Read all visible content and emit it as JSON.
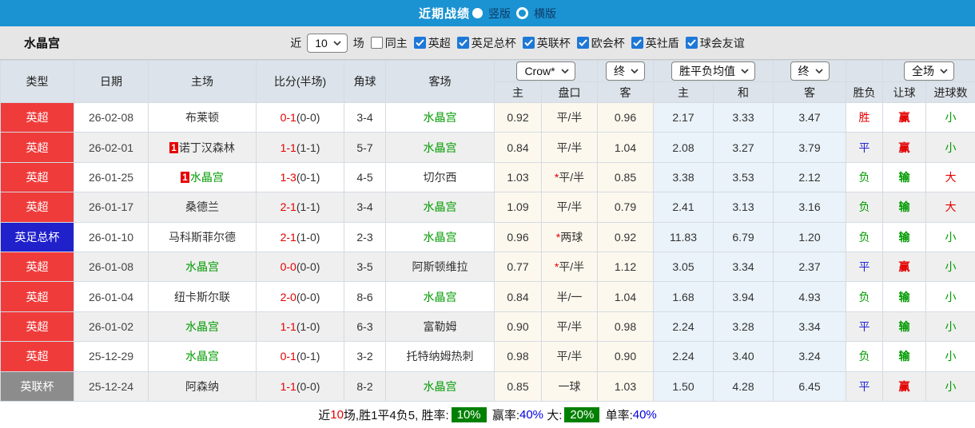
{
  "topbar": {
    "title": "近期战绩",
    "vertical_label": "竖版",
    "horizontal_label": "横版",
    "selected": "竖版"
  },
  "filter": {
    "team": "水晶宫",
    "near_label": "近",
    "count": "10",
    "games_label": "场",
    "same_home": {
      "label": "同主",
      "checked": false
    },
    "leagues": [
      {
        "label": "英超",
        "checked": true
      },
      {
        "label": "英足总杯",
        "checked": true
      },
      {
        "label": "英联杯",
        "checked": true
      },
      {
        "label": "欧会杯",
        "checked": true
      },
      {
        "label": "英社盾",
        "checked": true
      },
      {
        "label": "球会友谊",
        "checked": true
      }
    ]
  },
  "table": {
    "headers_left": [
      "类型",
      "日期",
      "主场",
      "比分(半场)",
      "角球",
      "客场"
    ],
    "selects": {
      "bookmaker": "Crow*",
      "bookmaker_final": "终",
      "average": "胜平负均值",
      "average_final": "终",
      "scope": "全场"
    },
    "subheaders": [
      "主",
      "盘口",
      "客",
      "主",
      "和",
      "客",
      "胜负",
      "让球",
      "进球数"
    ],
    "rows": [
      {
        "league": "英超",
        "league_style": "red",
        "date": "26-02-08",
        "home": {
          "name": "布莱顿",
          "green": false,
          "badge": ""
        },
        "score": "0-1",
        "half": "(0-0)",
        "corners": "3-4",
        "away": {
          "name": "水晶宫",
          "green": true,
          "badge": ""
        },
        "odds_home": "0.92",
        "line": "平/半",
        "line_star": false,
        "odds_away": "0.96",
        "avg_home": "2.17",
        "avg_draw": "3.33",
        "avg_away": "3.47",
        "result": [
          "胜",
          "red"
        ],
        "handicap_res": [
          "赢",
          "red"
        ],
        "goals_res": [
          "小",
          "green"
        ]
      },
      {
        "league": "英超",
        "league_style": "red",
        "date": "26-02-01",
        "home": {
          "name": "诺丁汉森林",
          "green": false,
          "badge": "1"
        },
        "score": "1-1",
        "half": "(1-1)",
        "corners": "5-7",
        "away": {
          "name": "水晶宫",
          "green": true,
          "badge": ""
        },
        "odds_home": "0.84",
        "line": "平/半",
        "line_star": false,
        "odds_away": "1.04",
        "avg_home": "2.08",
        "avg_draw": "3.27",
        "avg_away": "3.79",
        "result": [
          "平",
          "blue"
        ],
        "handicap_res": [
          "赢",
          "red"
        ],
        "goals_res": [
          "小",
          "green"
        ]
      },
      {
        "league": "英超",
        "league_style": "red",
        "date": "26-01-25",
        "home": {
          "name": "水晶宫",
          "green": true,
          "badge": "1"
        },
        "score": "1-3",
        "half": "(0-1)",
        "corners": "4-5",
        "away": {
          "name": "切尔西",
          "green": false,
          "badge": ""
        },
        "odds_home": "1.03",
        "line": "平/半",
        "line_star": true,
        "odds_away": "0.85",
        "avg_home": "3.38",
        "avg_draw": "3.53",
        "avg_away": "2.12",
        "result": [
          "负",
          "green"
        ],
        "handicap_res": [
          "输",
          "green"
        ],
        "goals_res": [
          "大",
          "red"
        ]
      },
      {
        "league": "英超",
        "league_style": "red",
        "date": "26-01-17",
        "home": {
          "name": "桑德兰",
          "green": false,
          "badge": ""
        },
        "score": "2-1",
        "half": "(1-1)",
        "corners": "3-4",
        "away": {
          "name": "水晶宫",
          "green": true,
          "badge": ""
        },
        "odds_home": "1.09",
        "line": "平/半",
        "line_star": false,
        "odds_away": "0.79",
        "avg_home": "2.41",
        "avg_draw": "3.13",
        "avg_away": "3.16",
        "result": [
          "负",
          "green"
        ],
        "handicap_res": [
          "输",
          "green"
        ],
        "goals_res": [
          "大",
          "red"
        ]
      },
      {
        "league": "英足总杯",
        "league_style": "blue",
        "date": "26-01-10",
        "home": {
          "name": "马科斯菲尔德",
          "green": false,
          "badge": ""
        },
        "score": "2-1",
        "half": "(1-0)",
        "corners": "2-3",
        "away": {
          "name": "水晶宫",
          "green": true,
          "badge": ""
        },
        "odds_home": "0.96",
        "line": "两球",
        "line_star": true,
        "odds_away": "0.92",
        "avg_home": "11.83",
        "avg_draw": "6.79",
        "avg_away": "1.20",
        "result": [
          "负",
          "green"
        ],
        "handicap_res": [
          "输",
          "green"
        ],
        "goals_res": [
          "小",
          "green"
        ]
      },
      {
        "league": "英超",
        "league_style": "red",
        "date": "26-01-08",
        "home": {
          "name": "水晶宫",
          "green": true,
          "badge": ""
        },
        "score": "0-0",
        "half": "(0-0)",
        "corners": "3-5",
        "away": {
          "name": "阿斯顿维拉",
          "green": false,
          "badge": ""
        },
        "odds_home": "0.77",
        "line": "平/半",
        "line_star": true,
        "odds_away": "1.12",
        "avg_home": "3.05",
        "avg_draw": "3.34",
        "avg_away": "2.37",
        "result": [
          "平",
          "blue"
        ],
        "handicap_res": [
          "赢",
          "red"
        ],
        "goals_res": [
          "小",
          "green"
        ]
      },
      {
        "league": "英超",
        "league_style": "red",
        "date": "26-01-04",
        "home": {
          "name": "纽卡斯尔联",
          "green": false,
          "badge": ""
        },
        "score": "2-0",
        "half": "(0-0)",
        "corners": "8-6",
        "away": {
          "name": "水晶宫",
          "green": true,
          "badge": ""
        },
        "odds_home": "0.84",
        "line": "半/一",
        "line_star": false,
        "odds_away": "1.04",
        "avg_home": "1.68",
        "avg_draw": "3.94",
        "avg_away": "4.93",
        "result": [
          "负",
          "green"
        ],
        "handicap_res": [
          "输",
          "green"
        ],
        "goals_res": [
          "小",
          "green"
        ]
      },
      {
        "league": "英超",
        "league_style": "red",
        "date": "26-01-02",
        "home": {
          "name": "水晶宫",
          "green": true,
          "badge": ""
        },
        "score": "1-1",
        "half": "(1-0)",
        "corners": "6-3",
        "away": {
          "name": "富勒姆",
          "green": false,
          "badge": ""
        },
        "odds_home": "0.90",
        "line": "平/半",
        "line_star": false,
        "odds_away": "0.98",
        "avg_home": "2.24",
        "avg_draw": "3.28",
        "avg_away": "3.34",
        "result": [
          "平",
          "blue"
        ],
        "handicap_res": [
          "输",
          "green"
        ],
        "goals_res": [
          "小",
          "green"
        ]
      },
      {
        "league": "英超",
        "league_style": "red",
        "date": "25-12-29",
        "home": {
          "name": "水晶宫",
          "green": true,
          "badge": ""
        },
        "score": "0-1",
        "half": "(0-1)",
        "corners": "3-2",
        "away": {
          "name": "托特纳姆热刺",
          "green": false,
          "badge": ""
        },
        "odds_home": "0.98",
        "line": "平/半",
        "line_star": false,
        "odds_away": "0.90",
        "avg_home": "2.24",
        "avg_draw": "3.40",
        "avg_away": "3.24",
        "result": [
          "负",
          "green"
        ],
        "handicap_res": [
          "输",
          "green"
        ],
        "goals_res": [
          "小",
          "green"
        ]
      },
      {
        "league": "英联杯",
        "league_style": "gray",
        "date": "25-12-24",
        "home": {
          "name": "阿森纳",
          "green": false,
          "badge": ""
        },
        "score": "1-1",
        "half": "(0-0)",
        "corners": "8-2",
        "away": {
          "name": "水晶宫",
          "green": true,
          "badge": ""
        },
        "odds_home": "0.85",
        "line": "一球",
        "line_star": false,
        "odds_away": "1.03",
        "avg_home": "1.50",
        "avg_draw": "4.28",
        "avg_away": "6.45",
        "result": [
          "平",
          "blue"
        ],
        "handicap_res": [
          "赢",
          "red"
        ],
        "goals_res": [
          "小",
          "green"
        ]
      }
    ]
  },
  "footer": {
    "segments": [
      {
        "text": "近",
        "style": "plain"
      },
      {
        "text": "10",
        "style": "red"
      },
      {
        "text": "场,胜1平4负5, 胜率:",
        "style": "plain"
      },
      {
        "text": "10%",
        "style": "badge"
      },
      {
        "text": " 赢率:",
        "style": "plain"
      },
      {
        "text": "40%",
        "style": "blue"
      },
      {
        "text": " 大:",
        "style": "plain"
      },
      {
        "text": "20%",
        "style": "badge"
      },
      {
        "text": " 单率:",
        "style": "plain"
      },
      {
        "text": "40%",
        "style": "blue"
      }
    ]
  },
  "colors": {
    "topbar_blue": "#1b93d2",
    "league_red": "#f03b3b",
    "league_blue": "#2121cc",
    "league_gray": "#8c8c8c",
    "team_green": "#009b00",
    "score_red": "#e30000",
    "result_blue": "#2424d6",
    "badge_green": "#008000",
    "percent_blue": "#0000e0"
  }
}
